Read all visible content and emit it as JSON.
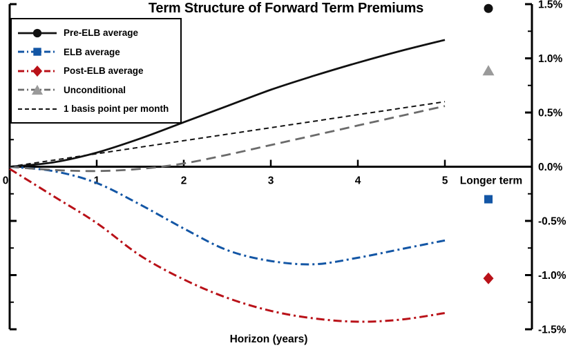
{
  "title": "Term Structure of Forward Term Premiums",
  "chart_data": {
    "type": "line",
    "title": "Term Structure of Forward Term Premiums",
    "xlabel": "Horizon (years)",
    "ylabel": "",
    "units": "percent",
    "grid": false,
    "legend_position": "upper-left",
    "y_axis_position": "right",
    "xlim": [
      0,
      5
    ],
    "ylim": [
      -1.5,
      1.5
    ],
    "x_tick_values": [
      0,
      1,
      2,
      3,
      4,
      5
    ],
    "x_tick_labels": [
      "0",
      "1",
      "2",
      "3",
      "4",
      "5"
    ],
    "longer_term_label": "Longer term",
    "y_tick_values": [
      1.5,
      1.0,
      0.5,
      0.0,
      -0.5,
      -1.0,
      -1.5
    ],
    "y_tick_labels": [
      "1.5%",
      "1.0%",
      "0.5%",
      "0.0%",
      "-0.5%",
      "-1.0%",
      "-1.5%"
    ],
    "y_minor_tick_step": 0.25,
    "x": [
      0,
      0.5,
      1,
      1.5,
      2,
      2.5,
      3,
      3.5,
      4,
      4.5,
      5
    ],
    "series": [
      {
        "name": "Pre-ELB average",
        "color": "#111111",
        "marker_color": "#111111",
        "line_style": "solid",
        "marker": "circle",
        "values": [
          0.0,
          0.04,
          0.13,
          0.26,
          0.41,
          0.56,
          0.71,
          0.84,
          0.96,
          1.07,
          1.17
        ],
        "longer_term_value": 1.46
      },
      {
        "name": "ELB average",
        "color": "#1356a5",
        "marker_color": "#1356a5",
        "line_style": "dash-dot",
        "marker": "square",
        "values": [
          0.0,
          -0.04,
          -0.15,
          -0.35,
          -0.57,
          -0.77,
          -0.87,
          -0.9,
          -0.84,
          -0.76,
          -0.68
        ],
        "longer_term_value": -0.3
      },
      {
        "name": "Post-ELB average",
        "color": "#b91118",
        "marker_color": "#b91118",
        "line_style": "dash-dot",
        "marker": "diamond",
        "values": [
          -0.02,
          -0.27,
          -0.52,
          -0.82,
          -1.04,
          -1.21,
          -1.33,
          -1.4,
          -1.43,
          -1.41,
          -1.35
        ],
        "longer_term_value": -1.03
      },
      {
        "name": "Unconditional",
        "color": "#6b6b6b",
        "marker_color": "#9a9a9a",
        "line_style": "long-dash",
        "marker": "triangle",
        "values": [
          0.0,
          -0.03,
          -0.04,
          -0.02,
          0.03,
          0.11,
          0.2,
          0.29,
          0.38,
          0.47,
          0.56
        ],
        "longer_term_value": 0.89
      },
      {
        "name": "1 basis point per month",
        "color": "#111111",
        "marker_color": "#111111",
        "line_style": "short-dash",
        "marker": "none",
        "values": [
          0.0,
          0.06,
          0.12,
          0.18,
          0.24,
          0.3,
          0.36,
          0.42,
          0.48,
          0.54,
          0.6
        ],
        "longer_term_value": null
      }
    ]
  }
}
